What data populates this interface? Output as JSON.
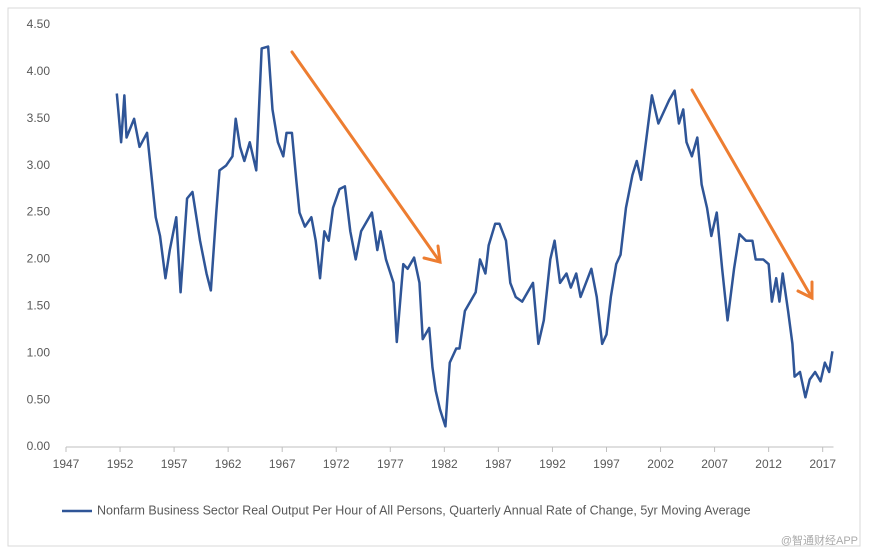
{
  "chart_data": {
    "type": "line",
    "x": [
      1951.7,
      1952.1,
      1952.4,
      1952.6,
      1953.3,
      1953.8,
      1954.5,
      1954.9,
      1955.3,
      1955.7,
      1956.2,
      1956.6,
      1957.2,
      1957.6,
      1958.2,
      1958.7,
      1959.4,
      1960.0,
      1960.4,
      1960.9,
      1961.2,
      1961.8,
      1962.4,
      1962.7,
      1963.1,
      1963.5,
      1964.0,
      1964.6,
      1965.1,
      1965.7,
      1966.1,
      1966.6,
      1967.1,
      1967.4,
      1967.9,
      1968.3,
      1968.6,
      1969.1,
      1969.7,
      1970.1,
      1970.5,
      1970.9,
      1971.3,
      1971.7,
      1972.3,
      1972.8,
      1973.3,
      1973.8,
      1974.3,
      1974.8,
      1975.3,
      1975.8,
      1976.1,
      1976.6,
      1977.3,
      1977.6,
      1978.2,
      1978.6,
      1979.2,
      1979.7,
      1980.0,
      1980.6,
      1980.9,
      1981.2,
      1981.6,
      1982.1,
      1982.5,
      1983.1,
      1983.4,
      1983.9,
      1984.4,
      1984.9,
      1985.3,
      1985.8,
      1986.1,
      1986.7,
      1987.1,
      1987.7,
      1988.1,
      1988.6,
      1989.2,
      1989.7,
      1990.2,
      1990.7,
      1991.2,
      1991.8,
      1992.2,
      1992.7,
      1993.3,
      1993.7,
      1994.2,
      1994.6,
      1995.1,
      1995.6,
      1996.1,
      1996.6,
      1997.0,
      1997.4,
      1997.9,
      1998.3,
      1998.8,
      1999.4,
      1999.8,
      2000.2,
      2000.7,
      2001.2,
      2001.8,
      2002.2,
      2002.8,
      2003.3,
      2003.7,
      2004.1,
      2004.4,
      2004.9,
      2005.4,
      2005.8,
      2006.3,
      2006.7,
      2007.2,
      2007.7,
      2008.2,
      2008.8,
      2009.3,
      2009.9,
      2010.5,
      2010.8,
      2011.5,
      2012.0,
      2012.3,
      2012.7,
      2013.0,
      2013.3,
      2013.8,
      2014.2,
      2014.4,
      2014.9,
      2015.4,
      2015.8,
      2016.3,
      2016.8,
      2017.2,
      2017.6,
      2017.9
    ],
    "series": [
      {
        "name": "Nonfarm Business Sector Real Output Per Hour of All Persons, Quarterly Annual Rate of Change, 5yr Moving Average",
        "color": "#2F5597",
        "values": [
          3.77,
          3.25,
          3.75,
          3.3,
          3.5,
          3.2,
          3.35,
          2.9,
          2.45,
          2.25,
          1.8,
          2.1,
          2.45,
          1.65,
          2.65,
          2.72,
          2.2,
          1.85,
          1.67,
          2.5,
          2.95,
          3.0,
          3.1,
          3.5,
          3.2,
          3.05,
          3.25,
          2.95,
          4.25,
          4.27,
          3.6,
          3.25,
          3.1,
          3.35,
          3.35,
          2.85,
          2.5,
          2.35,
          2.45,
          2.2,
          1.8,
          2.3,
          2.2,
          2.55,
          2.75,
          2.78,
          2.3,
          2.0,
          2.3,
          2.4,
          2.5,
          2.1,
          2.3,
          2.0,
          1.75,
          1.12,
          1.95,
          1.9,
          2.02,
          1.75,
          1.15,
          1.27,
          0.85,
          0.6,
          0.4,
          0.22,
          0.9,
          1.05,
          1.05,
          1.45,
          1.55,
          1.65,
          2.0,
          1.85,
          2.15,
          2.38,
          2.38,
          2.2,
          1.75,
          1.6,
          1.55,
          1.65,
          1.75,
          1.1,
          1.35,
          2.0,
          2.2,
          1.75,
          1.85,
          1.7,
          1.85,
          1.6,
          1.75,
          1.9,
          1.6,
          1.1,
          1.2,
          1.6,
          1.95,
          2.05,
          2.55,
          2.9,
          3.05,
          2.85,
          3.3,
          3.75,
          3.45,
          3.55,
          3.7,
          3.8,
          3.45,
          3.6,
          3.25,
          3.1,
          3.3,
          2.8,
          2.55,
          2.25,
          2.5,
          1.9,
          1.35,
          1.9,
          2.27,
          2.2,
          2.2,
          2.0,
          2.0,
          1.95,
          1.55,
          1.8,
          1.55,
          1.85,
          1.45,
          1.1,
          0.75,
          0.8,
          0.53,
          0.72,
          0.8,
          0.7,
          0.9,
          0.8,
          1.02
        ]
      }
    ],
    "xlim": [
      1947,
      2018
    ],
    "xticks": [
      1947,
      1952,
      1957,
      1962,
      1967,
      1972,
      1977,
      1982,
      1987,
      1992,
      1997,
      2002,
      2007,
      2012,
      2017
    ],
    "ylim": [
      0,
      4.5
    ],
    "yticks": [
      {
        "value": 0,
        "label": "0.00"
      },
      {
        "value": 0.5,
        "label": "0.50"
      },
      {
        "value": 1,
        "label": "1.00"
      },
      {
        "value": 1.5,
        "label": "1.50"
      },
      {
        "value": 2,
        "label": "2.00"
      },
      {
        "value": 2.5,
        "label": "2.50"
      },
      {
        "value": 3,
        "label": "3.00"
      },
      {
        "value": 3.5,
        "label": "3.50"
      },
      {
        "value": 4,
        "label": "4.00"
      },
      {
        "value": 4.5,
        "label": "4.50"
      }
    ],
    "grid": false,
    "legend": "bottom",
    "watermark": "@智通财经APP"
  }
}
